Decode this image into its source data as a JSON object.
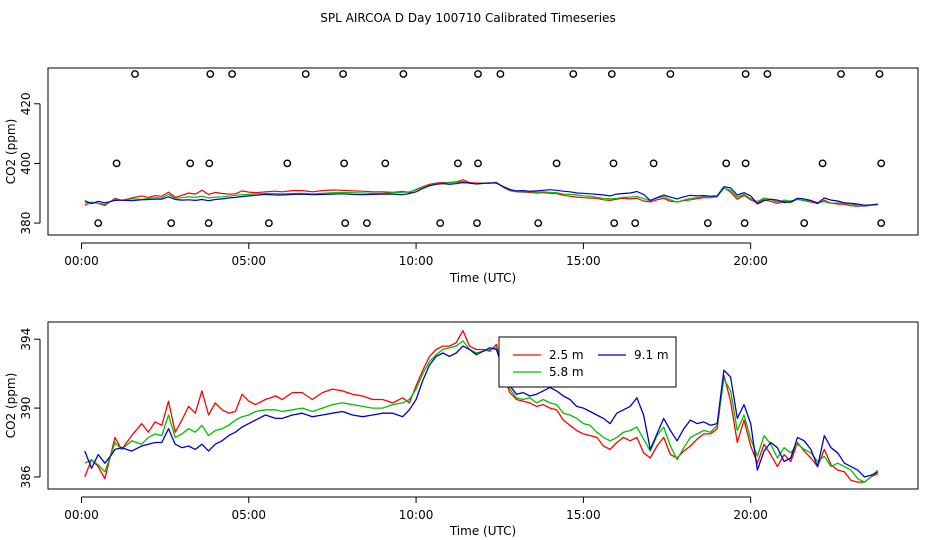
{
  "title": "SPL AIRCOA D  Day 100710  Calibrated Timeseries",
  "colors": {
    "s25": "#ff0000",
    "s58": "#00c000",
    "s91": "#0000cc",
    "markers": "#000000"
  },
  "chart_data": [
    {
      "type": "line+scatter",
      "xlabel": "Time (UTC)",
      "ylabel": "CO2 (ppm)",
      "xlim": [
        0,
        24
      ],
      "ylim": [
        376,
        432
      ],
      "xticks": [
        0,
        5,
        10,
        15,
        20
      ],
      "xtick_labels": [
        "00:00",
        "05:00",
        "10:00",
        "15:00",
        "20:00"
      ],
      "yticks": [
        380,
        400,
        420
      ],
      "ytick_labels": [
        "380",
        "400",
        "420"
      ],
      "markers": [
        [
          0.5,
          380
        ],
        [
          2.68,
          380
        ],
        [
          3.8,
          380
        ],
        [
          5.6,
          380
        ],
        [
          7.88,
          380
        ],
        [
          8.53,
          380
        ],
        [
          10.72,
          380
        ],
        [
          11.82,
          380
        ],
        [
          13.65,
          380
        ],
        [
          15.92,
          380
        ],
        [
          16.55,
          380
        ],
        [
          18.72,
          380
        ],
        [
          19.82,
          380
        ],
        [
          21.6,
          380
        ],
        [
          23.9,
          380
        ],
        [
          1.05,
          400
        ],
        [
          3.25,
          400
        ],
        [
          3.82,
          400
        ],
        [
          6.15,
          400
        ],
        [
          7.85,
          400
        ],
        [
          9.08,
          400
        ],
        [
          11.25,
          400
        ],
        [
          11.85,
          400
        ],
        [
          14.2,
          400
        ],
        [
          15.9,
          400
        ],
        [
          17.1,
          400
        ],
        [
          19.27,
          400
        ],
        [
          19.85,
          400
        ],
        [
          22.15,
          400
        ],
        [
          23.9,
          400
        ],
        [
          1.6,
          430
        ],
        [
          3.85,
          430
        ],
        [
          4.5,
          430
        ],
        [
          6.7,
          430
        ],
        [
          7.82,
          430
        ],
        [
          9.62,
          430
        ],
        [
          11.85,
          430
        ],
        [
          12.52,
          430
        ],
        [
          14.7,
          430
        ],
        [
          15.85,
          430
        ],
        [
          17.6,
          430
        ],
        [
          19.85,
          430
        ],
        [
          20.5,
          430
        ],
        [
          22.7,
          430
        ],
        [
          23.85,
          430
        ]
      ]
    },
    {
      "type": "line",
      "xlabel": "Time (UTC)",
      "ylabel": "CO2 (ppm)",
      "xlim": [
        0,
        24
      ],
      "ylim": [
        385.3,
        395
      ],
      "xticks": [
        0,
        5,
        10,
        15,
        20
      ],
      "xtick_labels": [
        "00:00",
        "05:00",
        "10:00",
        "15:00",
        "20:00"
      ],
      "yticks": [
        386,
        390,
        394
      ],
      "ytick_labels": [
        "386",
        "390",
        "394"
      ]
    }
  ],
  "series": [
    {
      "name": "2.5 m",
      "color": "#ff0000",
      "x": [
        0.1,
        0.3,
        0.5,
        0.7,
        0.9,
        1.0,
        1.2,
        1.5,
        1.8,
        2.0,
        2.2,
        2.4,
        2.6,
        2.8,
        3.0,
        3.2,
        3.4,
        3.6,
        3.8,
        4.0,
        4.2,
        4.4,
        4.6,
        4.8,
        5.0,
        5.2,
        5.5,
        5.8,
        6.0,
        6.3,
        6.6,
        6.9,
        7.2,
        7.5,
        7.8,
        8.1,
        8.4,
        8.7,
        9.0,
        9.3,
        9.6,
        9.8,
        10.0,
        10.2,
        10.4,
        10.6,
        10.8,
        11.0,
        11.2,
        11.4,
        11.6,
        11.8,
        12.0,
        12.2,
        12.4,
        12.6,
        12.8,
        13.0,
        13.2,
        13.4,
        13.6,
        13.8,
        14.0,
        14.2,
        14.4,
        14.6,
        14.8,
        15.0,
        15.2,
        15.4,
        15.6,
        15.8,
        16.0,
        16.2,
        16.4,
        16.6,
        16.8,
        17.0,
        17.2,
        17.4,
        17.6,
        17.8,
        18.0,
        18.2,
        18.4,
        18.6,
        18.8,
        19.0,
        19.2,
        19.4,
        19.6,
        19.8,
        20.0,
        20.2,
        20.4,
        20.6,
        20.8,
        21.0,
        21.2,
        21.4,
        21.6,
        21.8,
        22.0,
        22.2,
        22.4,
        22.6,
        22.8,
        23.0,
        23.2,
        23.4,
        23.6,
        23.8
      ],
      "y": [
        386.0,
        387.0,
        386.6,
        385.9,
        387.5,
        388.3,
        387.6,
        388.4,
        389.1,
        388.6,
        389.2,
        389.0,
        390.4,
        388.6,
        389.3,
        390.1,
        389.7,
        391.0,
        389.6,
        390.3,
        389.9,
        389.7,
        389.8,
        390.8,
        390.4,
        390.2,
        390.5,
        390.7,
        390.5,
        390.9,
        390.9,
        390.5,
        390.9,
        391.1,
        391.0,
        390.8,
        390.7,
        390.5,
        390.5,
        390.3,
        390.6,
        390.3,
        391.3,
        392.2,
        393.0,
        393.4,
        393.6,
        393.6,
        393.8,
        394.5,
        393.6,
        393.4,
        393.4,
        393.3,
        393.7,
        392.0,
        390.9,
        390.5,
        390.4,
        390.3,
        390.1,
        390.2,
        390.0,
        389.9,
        389.3,
        389.0,
        388.7,
        388.5,
        388.4,
        388.3,
        387.8,
        387.6,
        388.0,
        388.3,
        388.1,
        388.3,
        387.4,
        387.1,
        387.8,
        388.3,
        387.3,
        387.1,
        387.5,
        387.8,
        388.2,
        388.5,
        388.5,
        388.8,
        391.9,
        390.4,
        388.0,
        389.3,
        387.8,
        386.8,
        387.9,
        387.3,
        386.6,
        387.3,
        386.9,
        388.0,
        387.5,
        387.1,
        386.6,
        387.6,
        386.7,
        386.4,
        386.3,
        385.8,
        385.7,
        385.7,
        386.0,
        386.2
      ]
    },
    {
      "name": "5.8 m",
      "color": "#00c000",
      "x": [
        0.1,
        0.3,
        0.5,
        0.7,
        0.9,
        1.0,
        1.2,
        1.5,
        1.8,
        2.0,
        2.2,
        2.4,
        2.6,
        2.8,
        3.0,
        3.2,
        3.4,
        3.6,
        3.8,
        4.0,
        4.2,
        4.4,
        4.6,
        4.8,
        5.0,
        5.2,
        5.5,
        5.8,
        6.0,
        6.3,
        6.6,
        6.9,
        7.2,
        7.5,
        7.8,
        8.1,
        8.4,
        8.7,
        9.0,
        9.3,
        9.6,
        9.8,
        10.0,
        10.2,
        10.4,
        10.6,
        10.8,
        11.0,
        11.2,
        11.4,
        11.6,
        11.8,
        12.0,
        12.2,
        12.4,
        12.6,
        12.8,
        13.0,
        13.2,
        13.4,
        13.6,
        13.8,
        14.0,
        14.2,
        14.4,
        14.6,
        14.8,
        15.0,
        15.2,
        15.4,
        15.6,
        15.8,
        16.0,
        16.2,
        16.4,
        16.6,
        16.8,
        17.0,
        17.2,
        17.4,
        17.6,
        17.8,
        18.0,
        18.2,
        18.4,
        18.6,
        18.8,
        19.0,
        19.2,
        19.4,
        19.6,
        19.8,
        20.0,
        20.2,
        20.4,
        20.6,
        20.8,
        21.0,
        21.2,
        21.4,
        21.6,
        21.8,
        22.0,
        22.2,
        22.4,
        22.6,
        22.8,
        23.0,
        23.2,
        23.4,
        23.6,
        23.8
      ],
      "y": [
        386.8,
        387.0,
        386.7,
        386.3,
        387.4,
        388.0,
        387.6,
        388.1,
        387.9,
        388.3,
        388.5,
        388.4,
        389.6,
        388.3,
        388.5,
        388.8,
        388.6,
        389.0,
        388.4,
        388.7,
        388.8,
        389.0,
        389.3,
        389.5,
        389.6,
        389.8,
        389.9,
        389.9,
        389.8,
        389.9,
        390.0,
        389.8,
        390.0,
        390.2,
        390.3,
        390.2,
        390.1,
        390.0,
        390.0,
        390.2,
        390.3,
        390.5,
        391.1,
        392.0,
        392.7,
        393.1,
        393.4,
        393.5,
        393.6,
        393.9,
        393.4,
        393.2,
        393.3,
        393.4,
        393.5,
        392.1,
        391.1,
        390.6,
        390.5,
        390.6,
        390.3,
        390.5,
        390.3,
        390.2,
        389.7,
        389.6,
        389.4,
        389.1,
        389.0,
        388.6,
        388.3,
        388.1,
        388.3,
        388.6,
        388.7,
        388.9,
        388.2,
        387.5,
        388.4,
        388.9,
        387.8,
        387.0,
        387.7,
        388.3,
        388.5,
        388.7,
        388.6,
        389.0,
        391.7,
        391.0,
        388.7,
        389.6,
        388.2,
        387.2,
        388.4,
        387.9,
        387.1,
        387.7,
        387.4,
        387.9,
        387.6,
        387.4,
        386.9,
        387.2,
        386.6,
        386.8,
        386.6,
        386.4,
        385.9,
        385.7,
        386.0,
        386.4
      ]
    },
    {
      "name": "9.1 m",
      "color": "#0000cc",
      "x": [
        0.1,
        0.3,
        0.5,
        0.7,
        0.9,
        1.0,
        1.2,
        1.5,
        1.8,
        2.0,
        2.2,
        2.4,
        2.6,
        2.8,
        3.0,
        3.2,
        3.4,
        3.6,
        3.8,
        4.0,
        4.2,
        4.4,
        4.6,
        4.8,
        5.0,
        5.2,
        5.5,
        5.8,
        6.0,
        6.3,
        6.6,
        6.9,
        7.2,
        7.5,
        7.8,
        8.1,
        8.4,
        8.7,
        9.0,
        9.3,
        9.6,
        9.8,
        10.0,
        10.2,
        10.4,
        10.6,
        10.8,
        11.0,
        11.2,
        11.4,
        11.6,
        11.8,
        12.0,
        12.2,
        12.4,
        12.6,
        12.8,
        13.0,
        13.2,
        13.4,
        13.6,
        13.8,
        14.0,
        14.2,
        14.4,
        14.6,
        14.8,
        15.0,
        15.2,
        15.4,
        15.6,
        15.8,
        16.0,
        16.2,
        16.4,
        16.6,
        16.8,
        17.0,
        17.2,
        17.4,
        17.6,
        17.8,
        18.0,
        18.2,
        18.4,
        18.6,
        18.8,
        19.0,
        19.2,
        19.4,
        19.6,
        19.8,
        20.0,
        20.2,
        20.4,
        20.6,
        20.8,
        21.0,
        21.2,
        21.4,
        21.6,
        21.8,
        22.0,
        22.2,
        22.4,
        22.6,
        22.8,
        23.0,
        23.2,
        23.4,
        23.6,
        23.8
      ],
      "y": [
        387.5,
        386.5,
        387.3,
        386.8,
        387.3,
        387.6,
        387.7,
        387.5,
        387.8,
        387.9,
        388.0,
        388.0,
        388.8,
        387.9,
        387.7,
        387.8,
        387.6,
        387.9,
        387.5,
        387.9,
        388.1,
        388.4,
        388.6,
        388.9,
        389.1,
        389.3,
        389.6,
        389.4,
        389.4,
        389.6,
        389.7,
        389.5,
        389.6,
        389.7,
        389.8,
        389.6,
        389.5,
        389.6,
        389.7,
        389.7,
        389.5,
        389.9,
        390.5,
        391.6,
        392.5,
        393.0,
        393.2,
        393.0,
        393.2,
        393.6,
        393.4,
        393.1,
        393.3,
        393.5,
        393.4,
        392.3,
        391.3,
        390.8,
        390.9,
        390.7,
        390.8,
        391.0,
        391.2,
        391.0,
        390.7,
        390.5,
        390.1,
        390.0,
        389.8,
        389.6,
        389.4,
        389.1,
        389.7,
        389.9,
        390.1,
        390.6,
        389.6,
        387.6,
        388.5,
        389.4,
        388.7,
        388.1,
        388.8,
        389.3,
        389.1,
        389.2,
        389.0,
        389.1,
        392.2,
        391.8,
        389.4,
        390.2,
        389.1,
        386.4,
        387.5,
        388.0,
        387.7,
        386.9,
        387.1,
        388.3,
        388.1,
        387.6,
        386.6,
        388.4,
        387.7,
        387.4,
        386.8,
        386.6,
        386.4,
        386.0,
        386.1,
        386.3
      ]
    }
  ],
  "legend": {
    "items": [
      "2.5 m",
      "5.8 m",
      "9.1 m"
    ],
    "position": "top-right"
  }
}
